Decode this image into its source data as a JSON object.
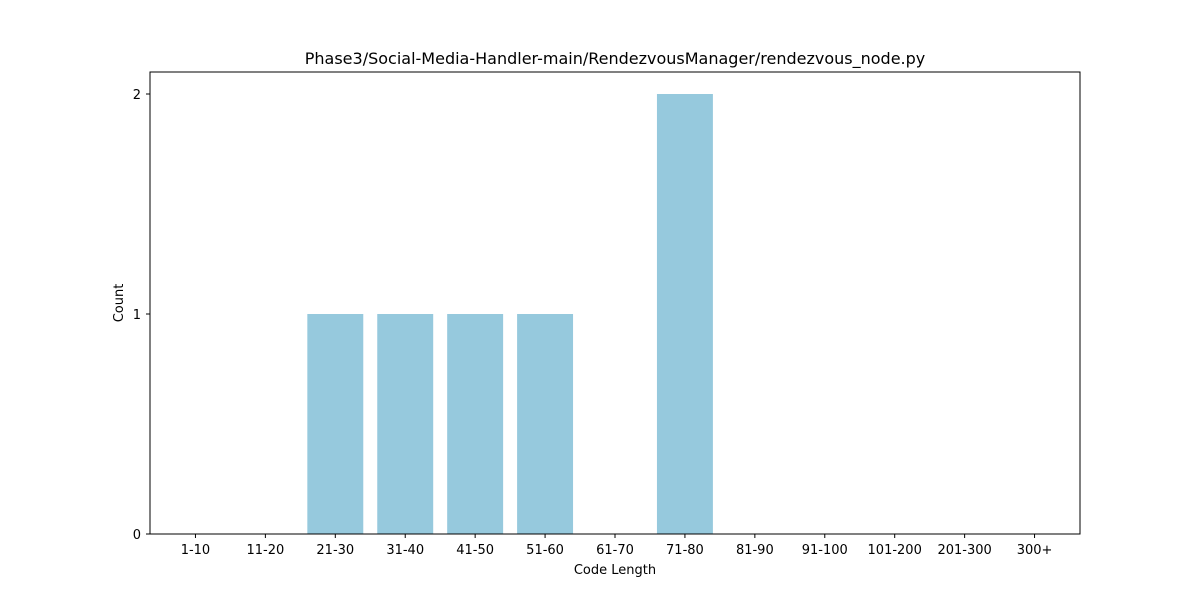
{
  "chart_data": {
    "type": "bar",
    "title": "Phase3/Social-Media-Handler-main/RendezvousManager/rendezvous_node.py",
    "xlabel": "Code Length",
    "ylabel": "Count",
    "categories": [
      "1-10",
      "11-20",
      "21-30",
      "31-40",
      "41-50",
      "51-60",
      "61-70",
      "71-80",
      "81-90",
      "91-100",
      "101-200",
      "201-300",
      "300+"
    ],
    "values": [
      0,
      0,
      1,
      1,
      1,
      1,
      0,
      2,
      0,
      0,
      0,
      0,
      0
    ],
    "ylim": [
      0,
      2.1
    ],
    "yticks": [
      0,
      1,
      2
    ],
    "grid": false,
    "bar_color": "#96c9dd"
  }
}
